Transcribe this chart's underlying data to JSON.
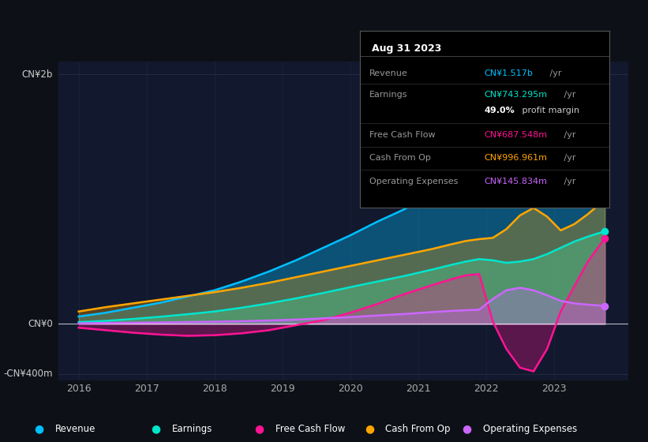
{
  "background_color": "#0d1117",
  "chart_bg": "#12192e",
  "series_colors": {
    "Revenue": "#00bfff",
    "Earnings": "#00e5cc",
    "Free Cash Flow": "#ff1493",
    "Cash From Op": "#ffa500",
    "Operating Expenses": "#cc66ff"
  },
  "legend_items": [
    {
      "label": "Revenue",
      "color": "#00bfff"
    },
    {
      "label": "Earnings",
      "color": "#00e5cc"
    },
    {
      "label": "Free Cash Flow",
      "color": "#ff1493"
    },
    {
      "label": "Cash From Op",
      "color": "#ffa500"
    },
    {
      "label": "Operating Expenses",
      "color": "#cc66ff"
    }
  ],
  "x_data": [
    2016.0,
    2016.4,
    2016.8,
    2017.2,
    2017.6,
    2018.0,
    2018.4,
    2018.8,
    2019.2,
    2019.6,
    2020.0,
    2020.4,
    2020.8,
    2021.2,
    2021.5,
    2021.7,
    2021.9,
    2022.1,
    2022.3,
    2022.5,
    2022.7,
    2022.9,
    2023.1,
    2023.3,
    2023.5,
    2023.75
  ],
  "revenue": [
    60,
    90,
    130,
    170,
    220,
    270,
    340,
    420,
    510,
    610,
    710,
    820,
    920,
    1050,
    1150,
    1220,
    1300,
    1370,
    1430,
    1480,
    1520,
    1560,
    1580,
    1590,
    1600,
    1517
  ],
  "earnings": [
    15,
    25,
    40,
    58,
    78,
    100,
    130,
    165,
    205,
    248,
    295,
    340,
    385,
    435,
    475,
    500,
    520,
    510,
    490,
    500,
    520,
    560,
    610,
    660,
    700,
    743
  ],
  "free_cash_flow": [
    -30,
    -50,
    -70,
    -85,
    -95,
    -90,
    -75,
    -50,
    -10,
    30,
    90,
    160,
    240,
    310,
    360,
    390,
    400,
    20,
    -200,
    -350,
    -380,
    -200,
    100,
    300,
    500,
    687
  ],
  "cash_from_op": [
    100,
    135,
    165,
    195,
    225,
    255,
    290,
    330,
    375,
    420,
    465,
    510,
    555,
    600,
    640,
    665,
    680,
    690,
    760,
    870,
    930,
    860,
    750,
    800,
    880,
    996
  ],
  "operating_expenses": [
    5,
    8,
    10,
    12,
    15,
    18,
    22,
    28,
    35,
    45,
    55,
    68,
    80,
    95,
    105,
    110,
    115,
    200,
    270,
    290,
    270,
    230,
    185,
    165,
    155,
    145
  ],
  "ylim": [
    -450,
    2100
  ],
  "xlim": [
    2015.7,
    2024.1
  ],
  "x_ticks": [
    2016,
    2017,
    2018,
    2019,
    2020,
    2021,
    2022,
    2023
  ],
  "x_tick_labels": [
    "2016",
    "2017",
    "2018",
    "2019",
    "2020",
    "2021",
    "2022",
    "2023"
  ],
  "y_ticks": [
    -400,
    0,
    2000
  ],
  "y_tick_labels": [
    "-CN¥400m",
    "CN¥0",
    "CN¥2b"
  ],
  "tooltip_date": "Aug 31 2023",
  "tooltip_rows": [
    {
      "label": "Revenue",
      "value": "CN¥1.517b",
      "suffix": " /yr",
      "color": "#00bfff",
      "indent": false
    },
    {
      "label": "Earnings",
      "value": "CN¥743.295m",
      "suffix": " /yr",
      "color": "#00e5cc",
      "indent": false
    },
    {
      "label": "",
      "value": "49.0%",
      "suffix": " profit margin",
      "color": "#ffffff",
      "bold": true,
      "indent": true
    },
    {
      "label": "Free Cash Flow",
      "value": "CN¥687.548m",
      "suffix": " /yr",
      "color": "#ff1493",
      "indent": false
    },
    {
      "label": "Cash From Op",
      "value": "CN¥996.961m",
      "suffix": " /yr",
      "color": "#ffa500",
      "indent": false
    },
    {
      "label": "Operating Expenses",
      "value": "CN¥145.834m",
      "suffix": " /yr",
      "color": "#cc66ff",
      "indent": false
    }
  ],
  "grid_color": "#2a3550",
  "zero_line_color": "#ffffff",
  "spine_color": "#2a3550",
  "text_color": "#aaaaaa",
  "fill_alpha": 0.35
}
